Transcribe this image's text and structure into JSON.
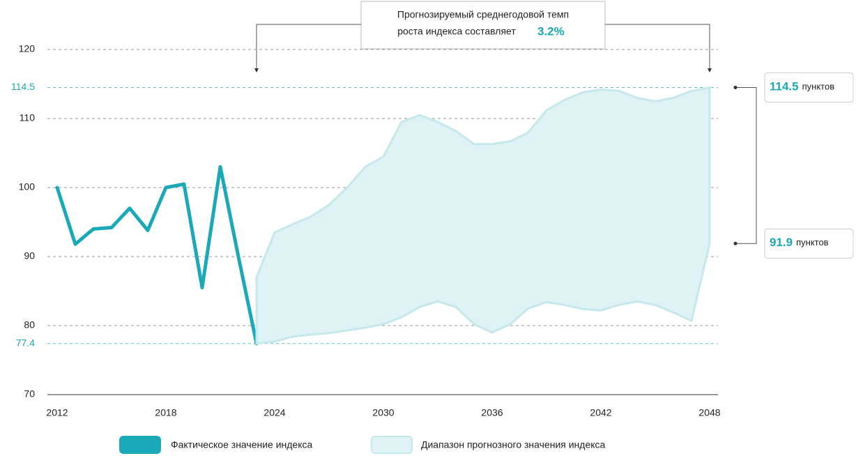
{
  "chart_data": {
    "type": "line",
    "annotation": {
      "text_line1": "Прогнозируемый среднегодовой темп",
      "text_line2": "роста индекса составляет",
      "highlight": "3.2%"
    },
    "xlim": [
      2012,
      2048
    ],
    "xticks": [
      2012,
      2018,
      2024,
      2030,
      2036,
      2042,
      2048
    ],
    "ylim": [
      70,
      120
    ],
    "yticks": [
      70,
      80,
      90,
      100,
      110,
      120
    ],
    "highlight_ticks": [
      77.4,
      114.5
    ],
    "highlight_color": "#1ba7b5",
    "grid": true,
    "series": [
      {
        "name": "Фактическое значение индекса",
        "type": "line",
        "color": "#1aa9b8",
        "x": [
          2012,
          2013,
          2014,
          2015,
          2016,
          2017,
          2018,
          2019,
          2020,
          2021,
          2022,
          2023
        ],
        "values": [
          100,
          91.8,
          94,
          94.2,
          97,
          93.8,
          100,
          100.5,
          85.5,
          103,
          90,
          77.4
        ]
      },
      {
        "name": "Диапазон прогнозного значения индекса",
        "type": "range",
        "color": "#dff2f4",
        "x": [
          2023,
          2024,
          2025,
          2026,
          2027,
          2028,
          2029,
          2030,
          2031,
          2032,
          2033,
          2034,
          2035,
          2036,
          2037,
          2038,
          2039,
          2040,
          2041,
          2042,
          2043,
          2044,
          2045,
          2046,
          2047,
          2048
        ],
        "upper": [
          87,
          93.5,
          94.7,
          95.8,
          97.5,
          100,
          103,
          104.5,
          109.5,
          110.5,
          109.5,
          108.2,
          106.3,
          106.3,
          106.7,
          108,
          111.2,
          112.7,
          113.8,
          114.2,
          114,
          113,
          112.5,
          113,
          114,
          114.5
        ],
        "lower": [
          77.4,
          77.7,
          78.4,
          78.7,
          78.9,
          79.3,
          79.7,
          80.2,
          81.2,
          82.7,
          83.5,
          82.7,
          80.2,
          79,
          80.2,
          82.5,
          83.4,
          83,
          82.4,
          82.2,
          83,
          83.5,
          83,
          81.9,
          80.7,
          91.9
        ]
      }
    ],
    "callouts": [
      {
        "value": 114.5,
        "unit": "пунктов"
      },
      {
        "value": 91.9,
        "unit": "пунктов"
      }
    ]
  }
}
